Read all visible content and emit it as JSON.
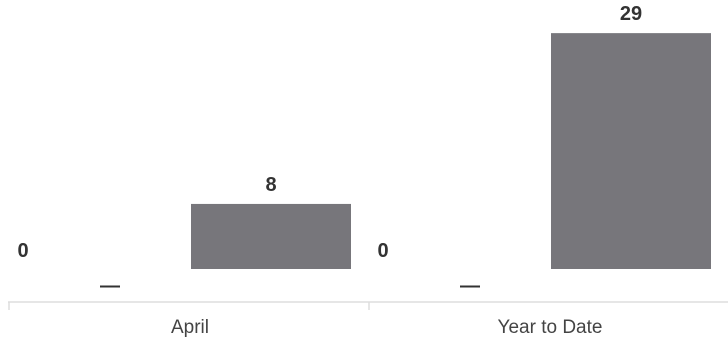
{
  "chart_data": {
    "type": "bar",
    "categories": [
      "April",
      "Year to Date"
    ],
    "series": [
      {
        "values": [
          0,
          0
        ]
      },
      {
        "values": [
          8,
          29
        ]
      }
    ],
    "ylim": [
      0,
      30
    ],
    "grid": false,
    "zero_value_marker": "—",
    "colors": {
      "bar": "#77767b",
      "axis": "#dddddd",
      "zero_marker": "#333333"
    }
  }
}
